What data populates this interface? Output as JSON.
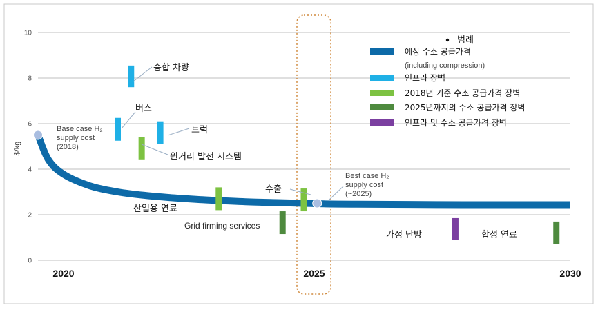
{
  "colors": {
    "supply_curve": "#0d6aa8",
    "infra": "#1fb0e6",
    "barrier_2018": "#7dc242",
    "barrier_2025": "#4e8a3e",
    "infra_and_supply": "#7b3fa0",
    "marker": "#a9bde0",
    "focus_box": "#d08a3e"
  },
  "chart_data": {
    "type": "line",
    "title": "",
    "xlabel": "",
    "ylabel": "$/kg",
    "xlim": [
      2020,
      2030
    ],
    "ylim": [
      0,
      10
    ],
    "yticks": [
      0,
      2,
      4,
      6,
      8,
      10
    ],
    "xtick_labels": [
      "2020",
      "2025",
      "2030"
    ],
    "grid": true,
    "legend_position": "top-right",
    "legend": {
      "title": "범례",
      "items": [
        {
          "key": "curve",
          "label": "예상 수소 공급가격",
          "sublabel": "(including compression)",
          "color": "#0d6aa8"
        },
        {
          "key": "infra",
          "label": "인프라 장벽",
          "color": "#1fb0e6"
        },
        {
          "key": "b2018",
          "label": "2018년 기준 수소 공급가격 장벽",
          "color": "#7dc242"
        },
        {
          "key": "b2025",
          "label": "2025년까지의 수소 공급가격 장벽",
          "color": "#4e8a3e"
        },
        {
          "key": "both",
          "label": "인프라 및 수소 공급가격 장벽",
          "color": "#7b3fa0"
        }
      ]
    },
    "series": [
      {
        "x": [
          2020.0,
          2020.2,
          2020.5,
          2021.0,
          2021.5,
          2022.0,
          2022.5,
          2023.0,
          2023.5,
          2024.0,
          2024.5,
          2025.0,
          2025.5,
          2026.0,
          2027.0,
          2028.0,
          2029.0,
          2030.0
        ],
        "y": [
          5.5,
          4.4,
          3.75,
          3.25,
          3.0,
          2.85,
          2.75,
          2.67,
          2.61,
          2.56,
          2.53,
          2.5,
          2.47,
          2.46,
          2.45,
          2.44,
          2.44,
          2.44
        ]
      }
    ],
    "points": [
      {
        "name": "base",
        "x": 2020.0,
        "y": 5.5,
        "label_lines": [
          "Base case H₂",
          "supply cost",
          "(2018)"
        ]
      },
      {
        "name": "best",
        "x": 2025.25,
        "y": 2.5,
        "label_lines": [
          "Best case H₂",
          "supply cost",
          "(~2025)"
        ]
      }
    ],
    "bars": [
      {
        "label": "승합 차량",
        "x": 2021.75,
        "ymin": 7.6,
        "ymax": 8.55,
        "category": "infra"
      },
      {
        "label": "버스",
        "x": 2021.5,
        "ymin": 5.25,
        "ymax": 6.25,
        "category": "infra"
      },
      {
        "label": "트럭",
        "x": 2022.3,
        "ymin": 5.1,
        "ymax": 6.1,
        "category": "infra"
      },
      {
        "label": "원거리 발전 시스템",
        "x": 2021.95,
        "ymin": 4.4,
        "ymax": 5.4,
        "category": "b2018"
      },
      {
        "label": "산업용 연료",
        "x": 2023.4,
        "ymin": 2.2,
        "ymax": 3.2,
        "category": "b2018"
      },
      {
        "label": "수출",
        "x": 2025.0,
        "ymin": 2.15,
        "ymax": 3.15,
        "category": "b2018"
      },
      {
        "label": "Grid firming services",
        "x": 2024.6,
        "ymin": 1.15,
        "ymax": 2.15,
        "category": "b2025"
      },
      {
        "label": "가정 난방",
        "x": 2027.85,
        "ymin": 0.9,
        "ymax": 1.85,
        "category": "both"
      },
      {
        "label": "합성 연료",
        "x": 2029.75,
        "ymin": 0.7,
        "ymax": 1.7,
        "category": "b2025"
      }
    ]
  }
}
